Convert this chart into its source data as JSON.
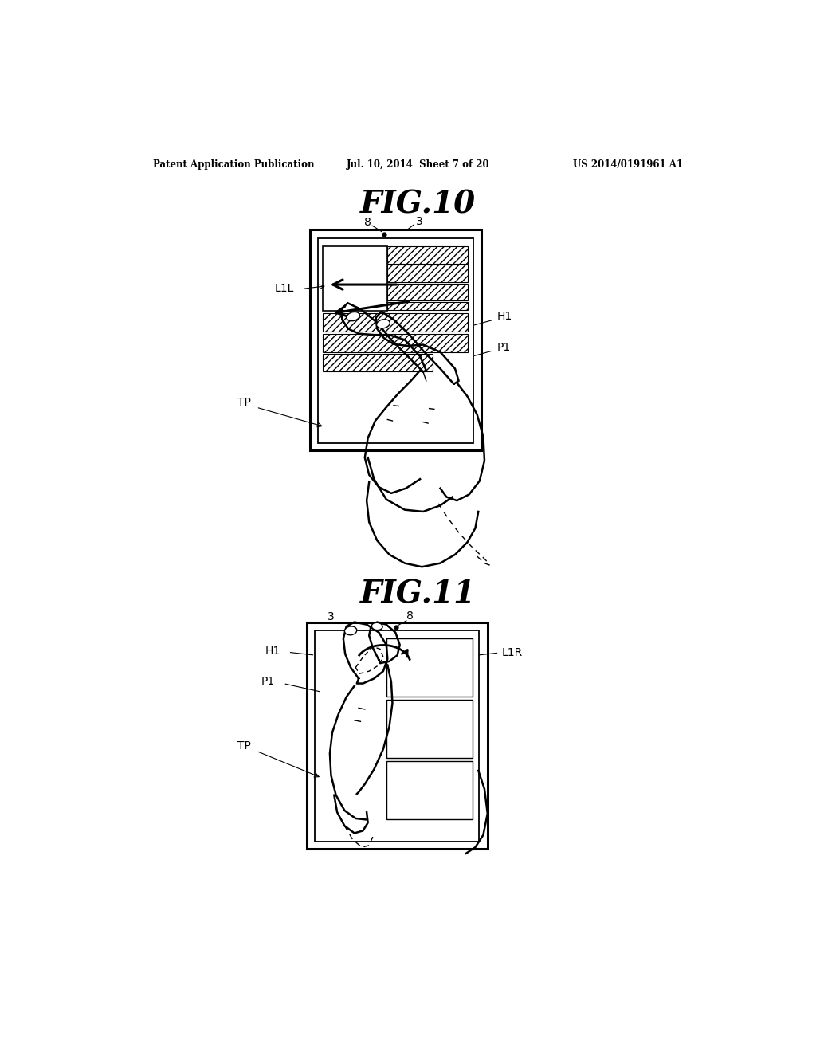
{
  "bg_color": "#ffffff",
  "header_left": "Patent Application Publication",
  "header_center": "Jul. 10, 2014  Sheet 7 of 20",
  "header_right": "US 2014/0191961 A1",
  "fig10_title": "FIG.10",
  "fig11_title": "FIG.11"
}
